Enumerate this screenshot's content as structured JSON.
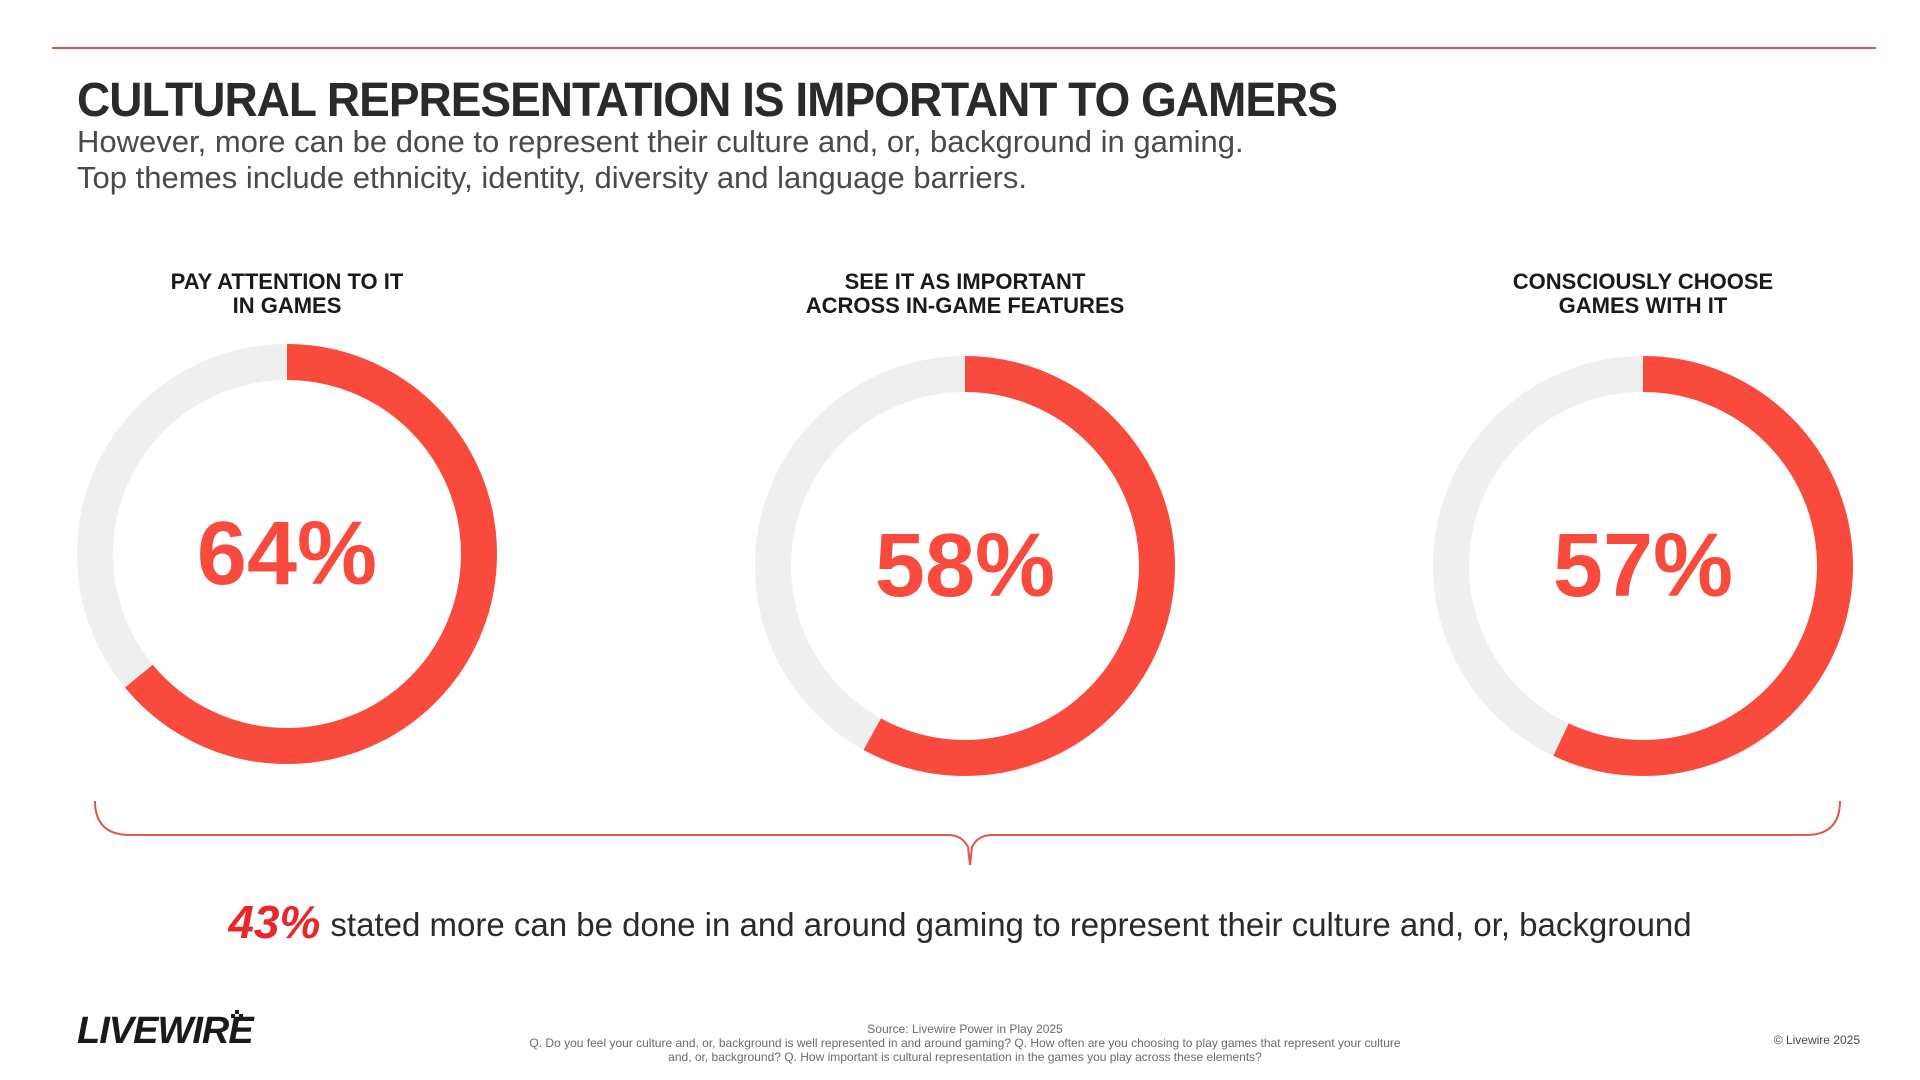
{
  "header": {
    "title": "CULTURAL REPRESENTATION IS IMPORTANT TO GAMERS",
    "subtitle_line1": "However, more can be done to represent their culture and, or, background in gaming.",
    "subtitle_line2": "Top themes include ethnicity, identity, diversity and language barriers."
  },
  "colors": {
    "accent": "#f84a3d",
    "track": "#efefef",
    "rule": "#e0574c",
    "summary_accent": "#e8272b"
  },
  "chart_data": [
    {
      "type": "pie",
      "title_line1": "PAY ATTENTION TO IT",
      "title_line2": "IN GAMES",
      "value": 64,
      "label": "64%",
      "max": 100
    },
    {
      "type": "pie",
      "title_line1": "SEE IT AS IMPORTANT",
      "title_line2": "ACROSS IN-GAME FEATURES",
      "value": 58,
      "label": "58%",
      "max": 100
    },
    {
      "type": "pie",
      "title_line1": "CONSCIOUSLY CHOOSE",
      "title_line2": "GAMES WITH IT",
      "value": 57,
      "label": "57%",
      "max": 100
    }
  ],
  "summary": {
    "percent": "43%",
    "text": "stated more can be done in and around gaming to represent their culture and, or, background"
  },
  "footer": {
    "logo": "LIVEWIRE",
    "source": "Source: Livewire Power in Play 2025",
    "question_line1": "Q. Do you feel your culture and, or, background is well represented in and around gaming? Q. How often are you choosing to play games that represent your culture",
    "question_line2": "and, or, background? Q. How important is cultural representation in the games you play across these elements?",
    "copyright": "© Livewire 2025"
  }
}
